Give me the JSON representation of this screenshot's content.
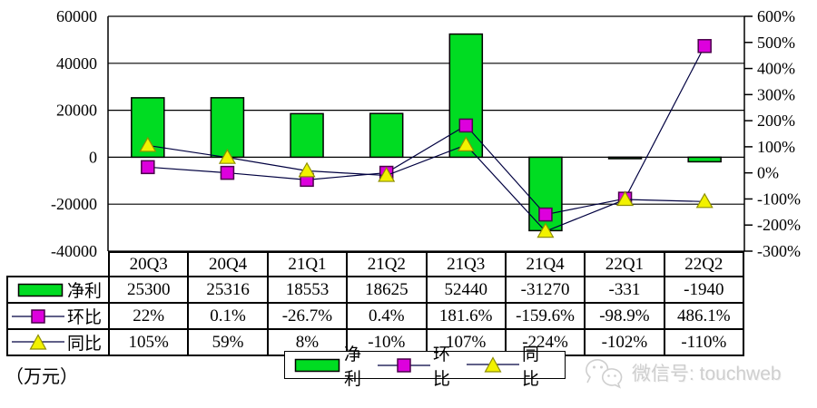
{
  "unit_label": "（万元）",
  "watermark": {
    "icon": "wechat-icon",
    "text": "微信号: touchweb",
    "color": "#cfcfcf"
  },
  "colors": {
    "bar_fill": "#00DC22",
    "bar_border": "#000000",
    "huanbi_fill": "#DD00DD",
    "huanbi_border": "#4b004b",
    "tongbi_fill": "#F2F200",
    "tongbi_border": "#8f8f00",
    "series_line": "#000040",
    "grid": "#000000",
    "text": "#000000",
    "background": "#ffffff"
  },
  "chart_data": {
    "type": "bar",
    "subtype": "combo-bar-line-dual-axis",
    "categories": [
      "20Q3",
      "20Q4",
      "21Q1",
      "21Q2",
      "21Q3",
      "21Q4",
      "22Q1",
      "22Q2"
    ],
    "series": [
      {
        "key": "jingli",
        "name": "净利",
        "type": "bar",
        "axis": "left",
        "values": [
          25300,
          25316,
          18553,
          18625,
          52440,
          -31270,
          -331,
          -1940
        ],
        "display": [
          "25300",
          "25316",
          "18553",
          "18625",
          "52440",
          "-31270",
          "-331",
          "-1940"
        ]
      },
      {
        "key": "huanbi",
        "name": "环比",
        "type": "line",
        "marker": "square",
        "axis": "right",
        "values": [
          22,
          0.1,
          -26.7,
          0.4,
          181.6,
          -159.6,
          -98.9,
          486.1
        ],
        "display": [
          "22%",
          "0.1%",
          "-26.7%",
          "0.4%",
          "181.6%",
          "-159.6%",
          "-98.9%",
          "486.1%"
        ]
      },
      {
        "key": "tongbi",
        "name": "同比",
        "type": "line",
        "marker": "triangle",
        "axis": "right",
        "values": [
          105,
          59,
          8,
          -10,
          107,
          -224,
          -102,
          -110
        ],
        "display": [
          "105%",
          "59%",
          "8%",
          "-10%",
          "107%",
          "-224%",
          "-102%",
          "-110%"
        ]
      }
    ],
    "left_axis": {
      "min": -40000,
      "max": 60000,
      "step": 20000,
      "ticks": [
        60000,
        40000,
        20000,
        0,
        -20000,
        -40000
      ],
      "labels": [
        "60000",
        "40000",
        "20000",
        "0",
        "-20000",
        "-40000"
      ],
      "unit": "万元"
    },
    "right_axis": {
      "min": -300,
      "max": 600,
      "step": 100,
      "ticks": [
        600,
        500,
        400,
        300,
        200,
        100,
        0,
        -100,
        -200,
        -300
      ],
      "labels": [
        "600%",
        "500%",
        "400%",
        "300%",
        "200%",
        "100%",
        "0%",
        "-100%",
        "-200%",
        "-300%"
      ]
    },
    "grid": "horizontal gridlines at each left-axis tick",
    "legend_position": "bottom-center",
    "legend": [
      "净利",
      "环比",
      "同比"
    ]
  }
}
